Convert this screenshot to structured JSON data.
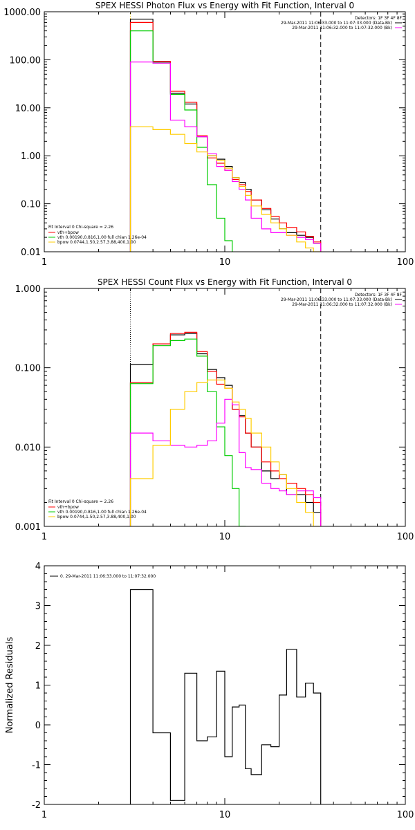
{
  "colors": {
    "total": "#000000",
    "sum": "#ff0000",
    "vth": "#00cc00",
    "bpow": "#ff00ff",
    "bk": "#dddd00",
    "yellow": "#ffcc00"
  },
  "chart_data": [
    {
      "type": "line",
      "title": "SPEX HESSI Photon Flux vs Energy with Fit Function, Interval 0",
      "x_scale": "log",
      "y_scale": "log",
      "xlim": [
        1,
        100
      ],
      "ylim": [
        0.01,
        1000
      ],
      "x_ticks": [
        {
          "v": 1,
          "label": "1"
        },
        {
          "v": 10,
          "label": "10"
        },
        {
          "v": 100,
          "label": "100"
        }
      ],
      "y_ticks": [
        {
          "v": 0.01,
          "label": "0.01"
        },
        {
          "v": 0.1,
          "label": "0.10"
        },
        {
          "v": 1,
          "label": "1.00"
        },
        {
          "v": 10,
          "label": "10.00"
        },
        {
          "v": 100,
          "label": "100.00"
        },
        {
          "v": 1000,
          "label": "1000.00"
        }
      ],
      "bin_edges": [
        3,
        4,
        5,
        6,
        7,
        8,
        9,
        10,
        11,
        12,
        13,
        14,
        16,
        18,
        20,
        22,
        25,
        28,
        31,
        34
      ],
      "vlines": [
        {
          "x": 3,
          "style": "dotted",
          "color": "#ffcc00"
        },
        {
          "x": 34,
          "style": "dashed",
          "color": "#000000"
        }
      ],
      "info_lines": [
        "Detectors: 1F 3F 4F 8F",
        "29-Mar-2011 11:06:33.000 to 11:07:33.000 (Data-Bk)",
        "29-Mar-2011 11:06:32.000 to 11:07:32.000 (Bk)"
      ],
      "fit_legend": {
        "title": "Fit Interval  0   Chi-square = 2.26",
        "items": [
          "vth+bpow",
          "vth 0.00190,0.816,1.00   full chian 1.26e-04",
          "bpow 0.0744,1.50,2.57,3.88,400,1.00"
        ]
      },
      "series": [
        {
          "key": "total",
          "values": [
            700,
            90,
            20,
            12,
            2.5,
            1.0,
            0.85,
            0.6,
            0.35,
            0.28,
            0.2,
            0.12,
            0.075,
            0.048,
            0.03,
            0.025,
            0.022,
            0.02,
            0.015
          ]
        },
        {
          "key": "sum",
          "values": [
            600,
            92,
            22,
            13,
            2.6,
            0.9,
            0.7,
            0.5,
            0.32,
            0.25,
            0.18,
            0.12,
            0.08,
            0.055,
            0.04,
            0.032,
            0.026,
            0.021,
            0.016
          ]
        },
        {
          "key": "vth",
          "values": [
            400,
            85,
            19,
            9,
            1.5,
            0.25,
            0.05,
            0.017
          ]
        },
        {
          "key": "bpow",
          "values": [
            90,
            85,
            5.5,
            4,
            2.5,
            1.1,
            0.6,
            0.5,
            0.29,
            0.2,
            0.12,
            0.05,
            0.03,
            0.025,
            0.025,
            0.022,
            0.02,
            0.018,
            0.015
          ]
        },
        {
          "key": "yellow",
          "values": [
            4,
            3.5,
            2.8,
            1.8,
            1.2,
            1.0,
            0.8,
            0.55,
            0.35,
            0.23,
            0.15,
            0.09,
            0.06,
            0.04,
            0.03,
            0.022,
            0.016,
            0.012,
            0.01
          ]
        }
      ]
    },
    {
      "type": "line",
      "title": "SPEX HESSI Count Flux vs Energy with Fit Function, Interval 0",
      "x_scale": "log",
      "y_scale": "log",
      "xlim": [
        1,
        100
      ],
      "ylim": [
        0.001,
        1
      ],
      "x_ticks": [
        {
          "v": 1,
          "label": "1"
        },
        {
          "v": 10,
          "label": "10"
        },
        {
          "v": 100,
          "label": "100"
        }
      ],
      "y_ticks": [
        {
          "v": 0.001,
          "label": "0.001"
        },
        {
          "v": 0.01,
          "label": "0.010"
        },
        {
          "v": 0.1,
          "label": "0.100"
        },
        {
          "v": 1,
          "label": "1.000"
        }
      ],
      "bin_edges": [
        3,
        4,
        5,
        6,
        7,
        8,
        9,
        10,
        11,
        12,
        13,
        14,
        16,
        18,
        20,
        22,
        25,
        28,
        31,
        34
      ],
      "vlines": [
        {
          "x": 3,
          "style": "dotted",
          "color": "#000000"
        },
        {
          "x": 34,
          "style": "dashed",
          "color": "#000000"
        }
      ],
      "info_lines": [
        "Detectors: 1F 3F 4F 8F",
        "29-Mar-2011 11:06:33.000 to 11:07:33.000 (Data-Bk)",
        "29-Mar-2011 11:06:32.000 to 11:07:32.000 (Bk)"
      ],
      "fit_legend": {
        "title": "Fit Interval  0   Chi-square = 2.26",
        "items": [
          "vth+bpow",
          "vth 0.00190,0.816,1.00   full chian 1.26e-04",
          "bpow 0.0744,1.50,2.57,3.88,400,1.00"
        ]
      },
      "series": [
        {
          "key": "total",
          "values": [
            0.11,
            0.2,
            0.26,
            0.27,
            0.15,
            0.095,
            0.075,
            0.06,
            0.03,
            0.025,
            0.015,
            0.01,
            0.005,
            0.004,
            0.0045,
            0.0025,
            0.0025,
            0.002,
            0.0015
          ]
        },
        {
          "key": "sum",
          "values": [
            0.065,
            0.2,
            0.27,
            0.28,
            0.16,
            0.09,
            0.062,
            0.055,
            0.03,
            0.024,
            0.015,
            0.01,
            0.0065,
            0.005,
            0.004,
            0.0035,
            0.003,
            0.0025,
            0.002
          ]
        },
        {
          "key": "vth",
          "values": [
            0.063,
            0.19,
            0.22,
            0.23,
            0.14,
            0.05,
            0.018,
            0.0078,
            0.003,
            0.001
          ]
        },
        {
          "key": "bpow",
          "values": [
            0.015,
            0.012,
            0.0105,
            0.01,
            0.0105,
            0.012,
            0.02,
            0.04,
            0.034,
            0.0085,
            0.0055,
            0.0052,
            0.0035,
            0.003,
            0.0028,
            0.0025,
            0.0028,
            0.0028,
            0.0023
          ]
        },
        {
          "key": "yellow",
          "values": [
            0.004,
            0.0105,
            0.03,
            0.05,
            0.065,
            0.07,
            0.07,
            0.055,
            0.037,
            0.03,
            0.023,
            0.015,
            0.01,
            0.0065,
            0.0045,
            0.003,
            0.002,
            0.0015,
            0.001
          ]
        }
      ]
    },
    {
      "type": "line",
      "title": "",
      "x_scale": "log",
      "y_scale": "linear",
      "xlim": [
        1,
        100
      ],
      "ylim": [
        -2,
        4
      ],
      "ylabel": "Normalized Residuals",
      "x_ticks": [
        {
          "v": 1,
          "label": "1"
        },
        {
          "v": 10,
          "label": "10"
        },
        {
          "v": 100,
          "label": "100"
        }
      ],
      "y_ticks": [
        {
          "v": -2,
          "label": "-2"
        },
        {
          "v": -1,
          "label": "-1"
        },
        {
          "v": 0,
          "label": "0"
        },
        {
          "v": 1,
          "label": "1"
        },
        {
          "v": 2,
          "label": "2"
        },
        {
          "v": 3,
          "label": "3"
        },
        {
          "v": 4,
          "label": "4"
        }
      ],
      "bin_edges": [
        3,
        4,
        5,
        6,
        7,
        8,
        9,
        10,
        11,
        12,
        13,
        14,
        16,
        18,
        20,
        22,
        25,
        28,
        31,
        34
      ],
      "legend": {
        "entries": [
          "0. 29-Mar-2011 11:06:33.000 to 11:07:32.000"
        ]
      },
      "series": [
        {
          "key": "total",
          "values": [
            3.4,
            -0.2,
            -1.9,
            1.3,
            -0.4,
            -0.3,
            1.35,
            -0.8,
            0.45,
            0.5,
            -1.1,
            -1.25,
            -0.5,
            -0.55,
            0.75,
            1.9,
            0.7,
            1.05,
            0.8
          ]
        }
      ]
    }
  ]
}
